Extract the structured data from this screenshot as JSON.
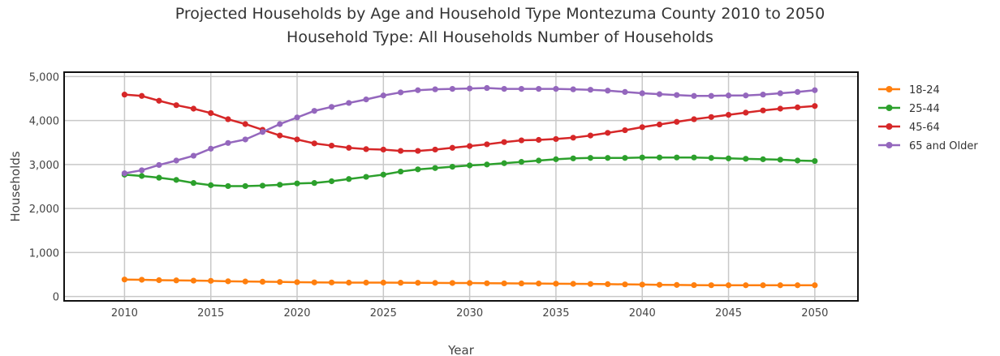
{
  "chart_data": {
    "type": "line",
    "title": "Projected Households by Age and Household Type Montezuma County 2010 to 2050",
    "subtitle": "Household Type: All Households Number of Households",
    "xlabel": "Year",
    "ylabel": "Households",
    "xlim": [
      2006.5,
      2052.5
    ],
    "ylim": [
      -100,
      5100
    ],
    "x_ticks": [
      2010,
      2015,
      2020,
      2025,
      2030,
      2035,
      2040,
      2045,
      2050
    ],
    "y_ticks": [
      0,
      1000,
      2000,
      3000,
      4000,
      5000
    ],
    "y_tick_labels": [
      "0",
      "1,000",
      "2,000",
      "3,000",
      "4,000",
      "5,000"
    ],
    "grid": true,
    "legend_position": "right",
    "x": [
      2010,
      2011,
      2012,
      2013,
      2014,
      2015,
      2016,
      2017,
      2018,
      2019,
      2020,
      2021,
      2022,
      2023,
      2024,
      2025,
      2026,
      2027,
      2028,
      2029,
      2030,
      2031,
      2032,
      2033,
      2034,
      2035,
      2036,
      2037,
      2038,
      2039,
      2040,
      2041,
      2042,
      2043,
      2044,
      2045,
      2046,
      2047,
      2048,
      2049,
      2050
    ],
    "series": [
      {
        "name": "18-24",
        "color": "#ff7f0e",
        "values": [
          385,
          380,
          370,
          365,
          360,
          355,
          345,
          340,
          335,
          330,
          325,
          320,
          318,
          315,
          315,
          315,
          312,
          310,
          308,
          306,
          305,
          300,
          298,
          296,
          294,
          290,
          287,
          284,
          280,
          275,
          270,
          265,
          262,
          258,
          256,
          255,
          255,
          255,
          255,
          255,
          255
        ]
      },
      {
        "name": "25-44",
        "color": "#2ca02c",
        "values": [
          2770,
          2740,
          2700,
          2650,
          2580,
          2530,
          2510,
          2510,
          2520,
          2540,
          2570,
          2580,
          2620,
          2670,
          2720,
          2770,
          2840,
          2890,
          2920,
          2950,
          2980,
          3000,
          3030,
          3060,
          3090,
          3120,
          3140,
          3150,
          3150,
          3150,
          3160,
          3160,
          3160,
          3160,
          3150,
          3140,
          3130,
          3120,
          3110,
          3090,
          3080
        ]
      },
      {
        "name": "45-64",
        "color": "#d62728",
        "values": [
          4590,
          4560,
          4450,
          4350,
          4270,
          4170,
          4030,
          3920,
          3790,
          3660,
          3570,
          3480,
          3430,
          3380,
          3350,
          3340,
          3310,
          3310,
          3340,
          3380,
          3420,
          3460,
          3510,
          3550,
          3560,
          3580,
          3610,
          3660,
          3720,
          3780,
          3850,
          3910,
          3970,
          4030,
          4080,
          4130,
          4180,
          4230,
          4270,
          4300,
          4330
        ]
      },
      {
        "name": "65 and Older",
        "color": "#9467bd",
        "values": [
          2800,
          2870,
          2990,
          3090,
          3200,
          3360,
          3490,
          3570,
          3740,
          3920,
          4070,
          4220,
          4310,
          4400,
          4480,
          4570,
          4640,
          4690,
          4710,
          4720,
          4730,
          4740,
          4720,
          4720,
          4720,
          4720,
          4710,
          4700,
          4680,
          4650,
          4620,
          4600,
          4580,
          4560,
          4560,
          4570,
          4570,
          4590,
          4620,
          4650,
          4690
        ]
      }
    ]
  }
}
